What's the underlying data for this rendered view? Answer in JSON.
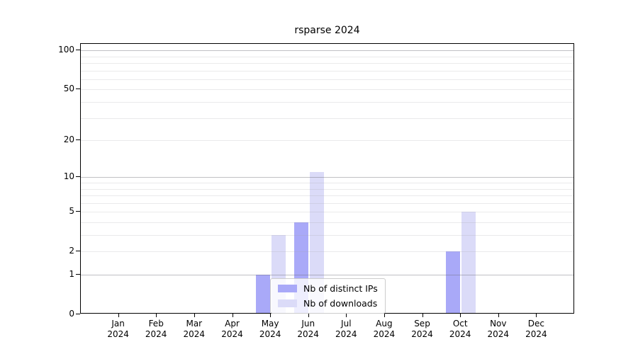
{
  "figure": {
    "title": "rsparse 2024"
  },
  "chart_data": {
    "type": "bar",
    "title": "rsparse 2024",
    "categories": [
      "Jan 2024",
      "Feb 2024",
      "Mar 2024",
      "Apr 2024",
      "May 2024",
      "Jun 2024",
      "Jul 2024",
      "Aug 2024",
      "Sep 2024",
      "Oct 2024",
      "Nov 2024",
      "Dec 2024"
    ],
    "series": [
      {
        "name": "Nb of distinct IPs",
        "color": "#a9a9f8",
        "values": [
          0,
          0,
          0,
          0,
          1,
          4,
          0,
          0,
          0,
          2,
          0,
          0
        ]
      },
      {
        "name": "Nb of downloads",
        "color": "#dbdbf8",
        "values": [
          0,
          0,
          0,
          0,
          3,
          11,
          0,
          0,
          0,
          5,
          0,
          0
        ]
      }
    ],
    "xlabel": "",
    "ylabel": "",
    "y_scale": "log1p",
    "y_ticks": [
      0,
      1,
      2,
      5,
      10,
      20,
      50,
      100
    ],
    "ylim": [
      0,
      112
    ],
    "grid": "horizontal",
    "grid_major_values": [
      1,
      10,
      100
    ],
    "grid_minor_values": [
      2,
      3,
      4,
      5,
      6,
      7,
      8,
      9,
      20,
      30,
      40,
      50,
      60,
      70,
      80,
      90
    ],
    "legend_position": "inside-lower-center"
  }
}
